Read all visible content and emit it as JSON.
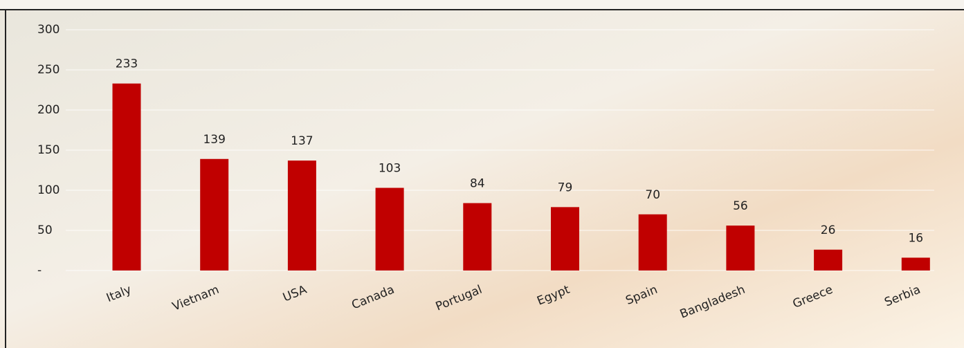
{
  "chart_data": {
    "type": "bar",
    "categories": [
      "Italy",
      "Vietnam",
      "USA",
      "Canada",
      "Portugal",
      "Egypt",
      "Spain",
      "Bangladesh",
      "Greece",
      "Serbia"
    ],
    "values": [
      233,
      139,
      137,
      103,
      84,
      79,
      70,
      56,
      26,
      16
    ],
    "color": "#c00000",
    "ylim": [
      0,
      300
    ],
    "yticks": [
      {
        "value": 0,
        "label": "-"
      },
      50,
      100,
      150,
      200,
      250,
      300
    ],
    "grid": true
  }
}
